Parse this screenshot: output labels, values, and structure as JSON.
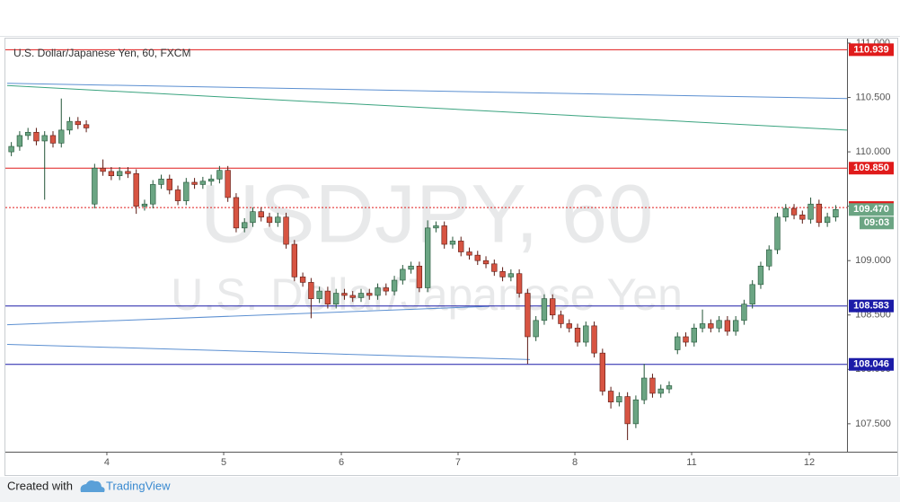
{
  "chart_data": {
    "type": "candlestick",
    "title": "U.S. Dollar/Japanese Yen, 60, FXCM",
    "watermark": [
      "USDJPY, 60",
      "U.S. Dollar/Japanese Yen"
    ],
    "up_color": "#6ba583",
    "down_color": "#d75442",
    "xlim": [
      -0.5,
      100.36
    ],
    "xticks": [
      {
        "value": 11.47,
        "label": "4"
      },
      {
        "value": 25.5,
        "label": "5"
      },
      {
        "value": 39.63,
        "label": "6"
      },
      {
        "value": 53.65,
        "label": "7"
      },
      {
        "value": 67.68,
        "label": "8"
      },
      {
        "value": 81.7,
        "label": "11"
      },
      {
        "value": 95.83,
        "label": "12"
      }
    ],
    "ylim": [
      107.243,
      111.041
    ],
    "yticks": [
      {
        "value": 107.5,
        "label": "107.500"
      },
      {
        "value": 108,
        "label": "108.000"
      },
      {
        "value": 108.5,
        "label": "108.500"
      },
      {
        "value": 109,
        "label": "109.000"
      },
      {
        "value": 109.5,
        "label": "109.500"
      },
      {
        "value": 110,
        "label": "110.000"
      },
      {
        "value": 110.5,
        "label": "110.500"
      },
      {
        "value": 111,
        "label": "111.000"
      }
    ],
    "open": [
      110.0,
      110.05,
      110.15,
      110.18,
      110.1,
      110.15,
      110.08,
      110.2,
      110.28,
      110.25,
      109.52,
      109.85,
      109.82,
      109.78,
      109.82,
      109.8,
      109.5,
      109.52,
      109.7,
      109.75,
      109.65,
      109.55,
      109.72,
      109.7,
      109.73,
      109.75,
      109.83,
      109.58,
      109.3,
      109.35,
      109.45,
      109.4,
      109.35,
      109.4,
      109.15,
      108.85,
      108.8,
      108.65,
      108.72,
      108.6,
      108.7,
      108.68,
      108.66,
      108.7,
      108.68,
      108.75,
      108.72,
      108.82,
      108.92,
      108.95,
      108.75,
      109.3,
      109.32,
      109.15,
      109.18,
      109.08,
      109.05,
      109.0,
      108.97,
      108.9,
      108.85,
      108.88,
      108.7,
      108.3,
      108.45,
      108.65,
      108.5,
      108.42,
      108.38,
      108.25,
      108.4,
      108.15,
      107.8,
      107.7,
      107.75,
      107.5,
      107.72,
      107.92,
      107.78,
      107.82,
      108.18,
      108.3,
      108.25,
      108.38,
      108.42,
      108.38,
      108.45,
      108.35,
      108.45,
      108.6,
      108.78,
      108.95,
      109.1,
      109.4,
      109.48,
      109.42,
      109.38,
      109.52,
      109.35,
      109.4
    ],
    "high": [
      110.09,
      110.19,
      110.22,
      110.22,
      110.19,
      110.19,
      110.49,
      110.32,
      110.32,
      110.29,
      109.89,
      109.93,
      109.86,
      109.86,
      109.86,
      109.84,
      109.56,
      109.74,
      109.79,
      109.79,
      109.69,
      109.76,
      109.76,
      109.77,
      109.79,
      109.87,
      109.87,
      109.62,
      109.39,
      109.49,
      109.49,
      109.44,
      109.44,
      109.44,
      109.19,
      108.89,
      108.84,
      108.76,
      108.76,
      108.74,
      108.74,
      108.72,
      108.74,
      108.74,
      108.79,
      108.79,
      108.86,
      108.96,
      108.99,
      108.99,
      109.37,
      109.36,
      109.36,
      109.22,
      109.22,
      109.12,
      109.09,
      109.04,
      109.01,
      108.94,
      108.92,
      108.92,
      108.74,
      108.49,
      108.69,
      108.69,
      108.54,
      108.46,
      108.42,
      108.44,
      108.44,
      108.19,
      107.84,
      107.79,
      107.79,
      107.76,
      108.05,
      107.96,
      107.86,
      107.89,
      108.34,
      108.34,
      108.42,
      108.55,
      108.46,
      108.49,
      108.49,
      108.49,
      108.64,
      108.82,
      108.99,
      109.14,
      109.44,
      109.52,
      109.52,
      109.46,
      109.58,
      109.56,
      109.44,
      109.51
    ],
    "low": [
      109.96,
      110.01,
      110.11,
      110.06,
      109.56,
      110.04,
      110.04,
      110.16,
      110.21,
      110.18,
      109.48,
      109.78,
      109.74,
      109.74,
      109.76,
      109.43,
      109.46,
      109.48,
      109.66,
      109.61,
      109.51,
      109.51,
      109.66,
      109.66,
      109.69,
      109.71,
      109.54,
      109.26,
      109.26,
      109.31,
      109.36,
      109.31,
      109.31,
      109.11,
      108.81,
      108.76,
      108.47,
      108.61,
      108.56,
      108.56,
      108.64,
      108.62,
      108.62,
      108.64,
      108.64,
      108.68,
      108.68,
      108.78,
      108.88,
      108.71,
      108.71,
      109.26,
      109.11,
      109.11,
      109.04,
      109.01,
      108.96,
      108.93,
      108.86,
      108.81,
      108.81,
      108.66,
      108.05,
      108.26,
      108.41,
      108.46,
      108.38,
      108.34,
      108.21,
      108.21,
      108.11,
      107.76,
      107.64,
      107.66,
      107.35,
      107.46,
      107.68,
      107.74,
      107.74,
      107.78,
      108.14,
      108.21,
      108.21,
      108.34,
      108.34,
      108.34,
      108.31,
      108.31,
      108.41,
      108.56,
      108.74,
      108.91,
      109.06,
      109.36,
      109.38,
      109.34,
      109.34,
      109.31,
      109.31,
      109.36
    ],
    "close": [
      110.05,
      110.15,
      110.18,
      110.1,
      110.15,
      110.08,
      110.2,
      110.28,
      110.25,
      110.22,
      109.85,
      109.82,
      109.78,
      109.82,
      109.8,
      109.5,
      109.52,
      109.7,
      109.75,
      109.65,
      109.55,
      109.72,
      109.7,
      109.73,
      109.75,
      109.83,
      109.58,
      109.3,
      109.35,
      109.45,
      109.4,
      109.35,
      109.4,
      109.15,
      108.85,
      108.8,
      108.65,
      108.72,
      108.6,
      108.7,
      108.68,
      108.66,
      108.7,
      108.68,
      108.75,
      108.72,
      108.82,
      108.92,
      108.95,
      108.75,
      109.3,
      109.32,
      109.15,
      109.18,
      109.08,
      109.05,
      109.0,
      108.97,
      108.9,
      108.85,
      108.88,
      108.7,
      108.3,
      108.45,
      108.65,
      108.5,
      108.42,
      108.38,
      108.25,
      108.4,
      108.15,
      107.8,
      107.7,
      107.75,
      107.5,
      107.72,
      107.92,
      107.78,
      107.82,
      107.85,
      108.3,
      108.25,
      108.38,
      108.42,
      108.38,
      108.45,
      108.35,
      108.45,
      108.6,
      108.78,
      108.95,
      109.1,
      109.4,
      109.48,
      109.42,
      109.38,
      109.52,
      109.35,
      109.4,
      109.47
    ],
    "levels": [
      {
        "value": 110.939,
        "color": "#e01b1b",
        "dashed": false
      },
      {
        "value": 109.85,
        "label": "109.850",
        "color": "#e01b1b",
        "dashed": false
      },
      {
        "value": 109.488,
        "color": "#e01b1b",
        "dashed": true
      },
      {
        "value": 108.583,
        "color": "#1c1ca8",
        "dashed": false
      },
      {
        "value": 108.046,
        "color": "#1c1ca8",
        "dashed": false
      }
    ],
    "trendlines": [
      {
        "x": [
          -0.5,
          100.36
        ],
        "y": [
          110.63,
          110.49
        ],
        "color": "#5b8fd1"
      },
      {
        "x": [
          -0.5,
          100.36
        ],
        "y": [
          110.61,
          110.2
        ],
        "color": "#3aa37f"
      },
      {
        "x": [
          -0.5,
          57.43
        ],
        "y": [
          108.41,
          108.58
        ],
        "color": "#5b8fd1"
      },
      {
        "x": [
          -0.5,
          62.28
        ],
        "y": [
          108.23,
          108.09
        ],
        "color": "#5b8fd1"
      }
    ],
    "last_price": {
      "value": 109.47,
      "label": "109.470"
    },
    "countdown": "09:03",
    "footer": {
      "prefix": "Created with",
      "brand": "TradingView"
    }
  }
}
